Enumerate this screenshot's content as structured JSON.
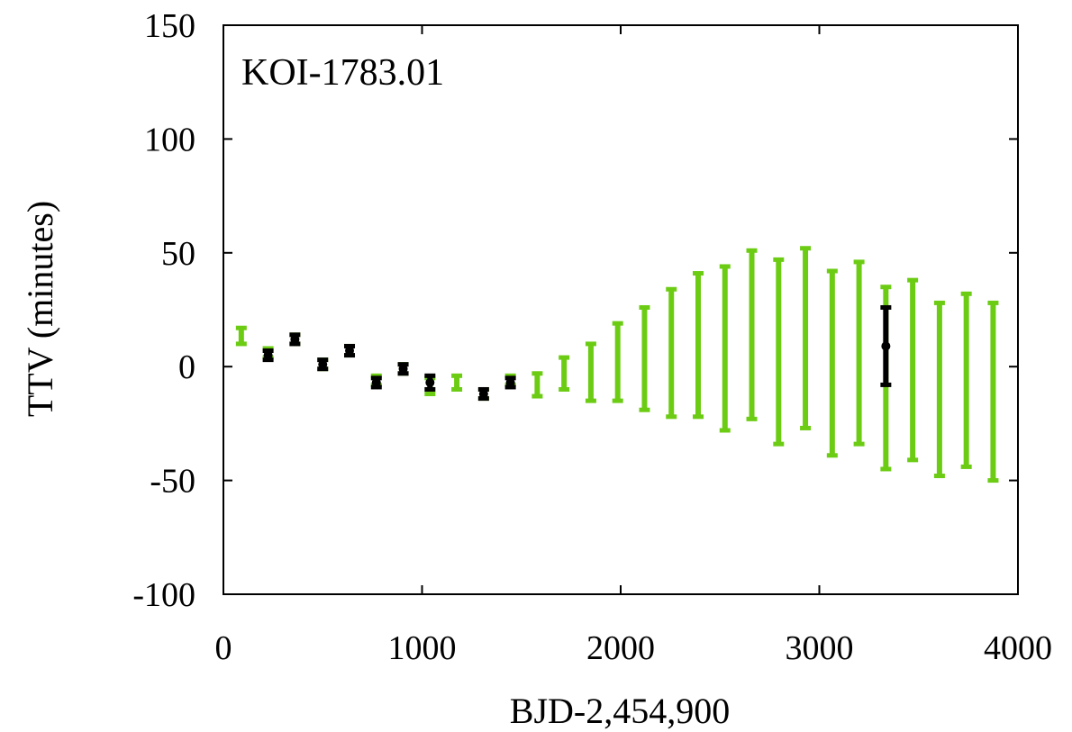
{
  "chart_data": {
    "type": "scatter",
    "annotation": "KOI-1783.01",
    "xlabel": "BJD-2,454,900",
    "ylabel": "TTV  (minutes)",
    "xlim": [
      0,
      4000
    ],
    "ylim": [
      -100,
      150
    ],
    "xticks": [
      0,
      1000,
      2000,
      3000,
      4000
    ],
    "yticks": [
      -100,
      -50,
      0,
      50,
      100,
      150
    ],
    "xtick_labels": [
      "0",
      "1000",
      "2000",
      "3000",
      "4000"
    ],
    "ytick_labels": [
      "-100",
      "-50",
      "0",
      "50",
      "100",
      "150"
    ],
    "grid": false,
    "colors": {
      "model": "#6ccc14",
      "observed": "#000000"
    },
    "series": [
      {
        "kind": "model-range",
        "color": "#6ccc14",
        "points": [
          {
            "x": 90,
            "low": 10,
            "high": 17
          },
          {
            "x": 225,
            "low": 4,
            "high": 8
          },
          {
            "x": 360,
            "low": 10,
            "high": 14
          },
          {
            "x": 500,
            "low": -1,
            "high": 3
          },
          {
            "x": 635,
            "low": 5,
            "high": 9
          },
          {
            "x": 770,
            "low": -8,
            "high": -4
          },
          {
            "x": 905,
            "low": -3,
            "high": 1
          },
          {
            "x": 1040,
            "low": -12,
            "high": -5
          },
          {
            "x": 1175,
            "low": -10,
            "high": -4
          },
          {
            "x": 1310,
            "low": -14,
            "high": -10
          },
          {
            "x": 1445,
            "low": -8,
            "high": -4
          },
          {
            "x": 1580,
            "low": -13,
            "high": -3
          },
          {
            "x": 1715,
            "low": -10,
            "high": 4
          },
          {
            "x": 1850,
            "low": -15,
            "high": 10
          },
          {
            "x": 1985,
            "low": -15,
            "high": 19
          },
          {
            "x": 2120,
            "low": -19,
            "high": 26
          },
          {
            "x": 2255,
            "low": -22,
            "high": 34
          },
          {
            "x": 2390,
            "low": -22,
            "high": 41
          },
          {
            "x": 2525,
            "low": -28,
            "high": 44
          },
          {
            "x": 2660,
            "low": -23,
            "high": 51
          },
          {
            "x": 2795,
            "low": -34,
            "high": 47
          },
          {
            "x": 2930,
            "low": -27,
            "high": 52
          },
          {
            "x": 3065,
            "low": -39,
            "high": 42
          },
          {
            "x": 3200,
            "low": -34,
            "high": 46
          },
          {
            "x": 3335,
            "low": -45,
            "high": 35
          },
          {
            "x": 3470,
            "low": -41,
            "high": 38
          },
          {
            "x": 3605,
            "low": -48,
            "high": 28
          },
          {
            "x": 3740,
            "low": -44,
            "high": 32
          },
          {
            "x": 3875,
            "low": -50,
            "high": 28
          }
        ]
      },
      {
        "kind": "observed",
        "color": "#000000",
        "points": [
          {
            "x": 225,
            "y": 5,
            "err": 2
          },
          {
            "x": 360,
            "y": 12,
            "err": 2
          },
          {
            "x": 500,
            "y": 1,
            "err": 2
          },
          {
            "x": 635,
            "y": 7,
            "err": 2
          },
          {
            "x": 770,
            "y": -7,
            "err": 2
          },
          {
            "x": 905,
            "y": -1,
            "err": 2
          },
          {
            "x": 1040,
            "y": -7,
            "err": 3
          },
          {
            "x": 1310,
            "y": -12,
            "err": 2
          },
          {
            "x": 1445,
            "y": -7,
            "err": 2
          },
          {
            "x": 3335,
            "y": 9,
            "err": 17
          }
        ]
      }
    ]
  }
}
